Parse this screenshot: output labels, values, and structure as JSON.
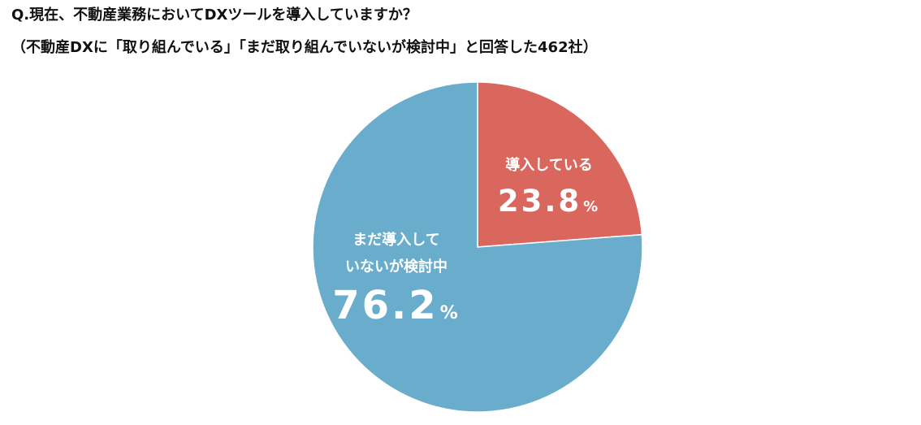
{
  "header": {
    "title": "Q.現在、不動産業務においてDXツールを導入していますか？",
    "subtitle": "（不動産DXに「取り組んでいる」「まだ取り組んでいないが検討中」と回答した462社）"
  },
  "chart_data": {
    "type": "pie",
    "title": "Q.現在、不動産業務においてDXツールを導入していますか？",
    "subtitle": "（不動産DXに「取り組んでいる」「まだ取り組んでいないが検討中」と回答した462社）",
    "start": "12 o'clock",
    "direction": "clockwise",
    "legend": "none",
    "slices": [
      {
        "label_lines": [
          "導入している"
        ],
        "value": 23.8,
        "value_text": "23.8",
        "unit": "%",
        "color": "#d9675e"
      },
      {
        "label_lines": [
          "まだ導入して",
          "いないが検討中"
        ],
        "value": 76.2,
        "value_text": "76.2",
        "unit": "%",
        "color": "#6aaccc"
      }
    ]
  }
}
